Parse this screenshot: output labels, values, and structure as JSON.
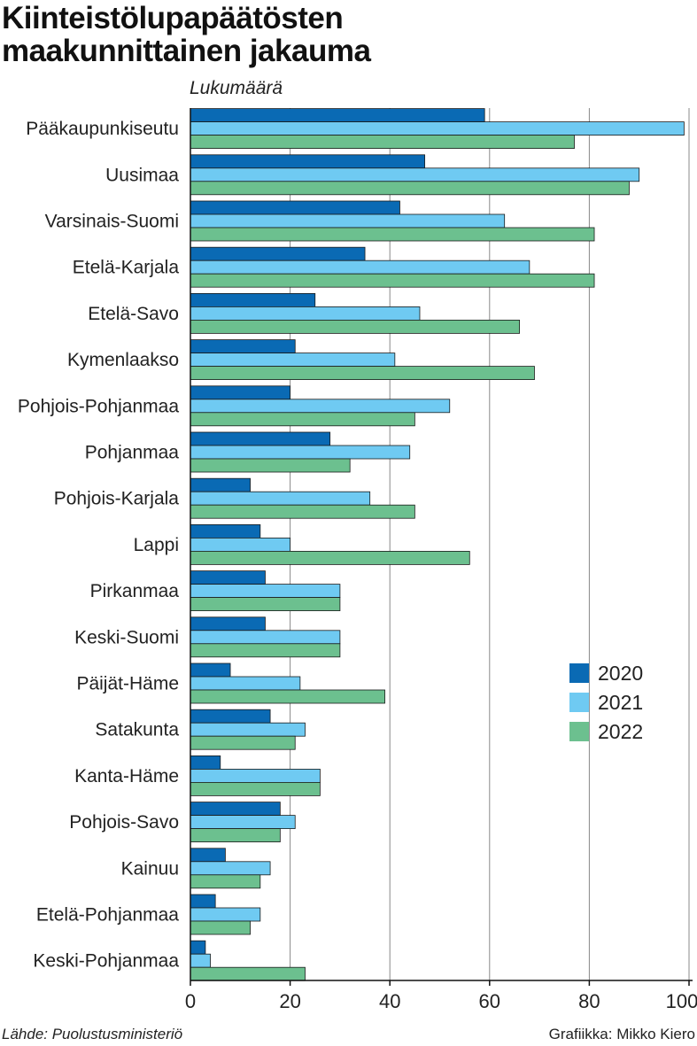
{
  "title_lines": [
    "Kiinteistölupapäätösten",
    "maakunnittainen jakauma"
  ],
  "unit_label": "Lukumäärä",
  "source": "Lähde: Puolustusministeriö",
  "credit": "Grafiikka: Mikko Kiero",
  "colors": {
    "2020": "#0a6ab4",
    "2021": "#6fcaf2",
    "2022": "#6cc08f",
    "grid": "#888888",
    "axis": "#111111"
  },
  "chart_data": {
    "type": "bar",
    "orientation": "horizontal",
    "title": "Kiinteistölupapäätösten maakunnittainen jakauma",
    "xlabel": "Lukumäärä",
    "ylabel": "",
    "xlim": [
      0,
      100
    ],
    "ticks": [
      0,
      20,
      40,
      60,
      80,
      100
    ],
    "grid": true,
    "legend_position": "lower-right",
    "categories": [
      "Pääkaupunkiseutu",
      "Uusimaa",
      "Varsinais-Suomi",
      "Etelä-Karjala",
      "Etelä-Savo",
      "Kymenlaakso",
      "Pohjois-Pohjanmaa",
      "Pohjanmaa",
      "Pohjois-Karjala",
      "Lappi",
      "Pirkanmaa",
      "Keski-Suomi",
      "Päijät-Häme",
      "Satakunta",
      "Kanta-Häme",
      "Pohjois-Savo",
      "Kainuu",
      "Etelä-Pohjanmaa",
      "Keski-Pohjanmaa"
    ],
    "series": [
      {
        "name": "2020",
        "color": "#0a6ab4",
        "values": [
          59,
          47,
          42,
          35,
          25,
          21,
          20,
          28,
          12,
          14,
          15,
          15,
          8,
          16,
          6,
          18,
          7,
          5,
          3
        ]
      },
      {
        "name": "2021",
        "color": "#6fcaf2",
        "values": [
          99,
          90,
          63,
          68,
          46,
          41,
          52,
          44,
          36,
          20,
          30,
          30,
          22,
          23,
          26,
          21,
          16,
          14,
          4
        ]
      },
      {
        "name": "2022",
        "color": "#6cc08f",
        "values": [
          77,
          88,
          81,
          81,
          66,
          69,
          45,
          32,
          45,
          56,
          30,
          30,
          39,
          21,
          26,
          18,
          14,
          12,
          23
        ]
      }
    ]
  }
}
